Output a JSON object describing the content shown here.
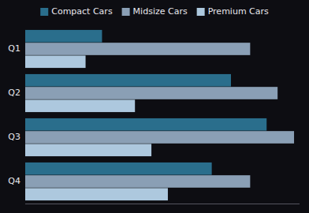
{
  "chart_data": {
    "type": "bar",
    "orientation": "horizontal",
    "categories": [
      "Q1",
      "Q2",
      "Q3",
      "Q4"
    ],
    "series": [
      {
        "name": "Compact Cars",
        "color": "#2a6e8c",
        "values": [
          28,
          75,
          88,
          68
        ]
      },
      {
        "name": "Midsize Cars",
        "color": "#8a9fb5",
        "values": [
          82,
          92,
          98,
          82
        ]
      },
      {
        "name": "Premium Cars",
        "color": "#adc8de",
        "values": [
          22,
          40,
          46,
          52
        ]
      }
    ],
    "xlim": [
      0,
      100
    ],
    "grid": false,
    "legend": "top",
    "tick_labels": "y"
  }
}
